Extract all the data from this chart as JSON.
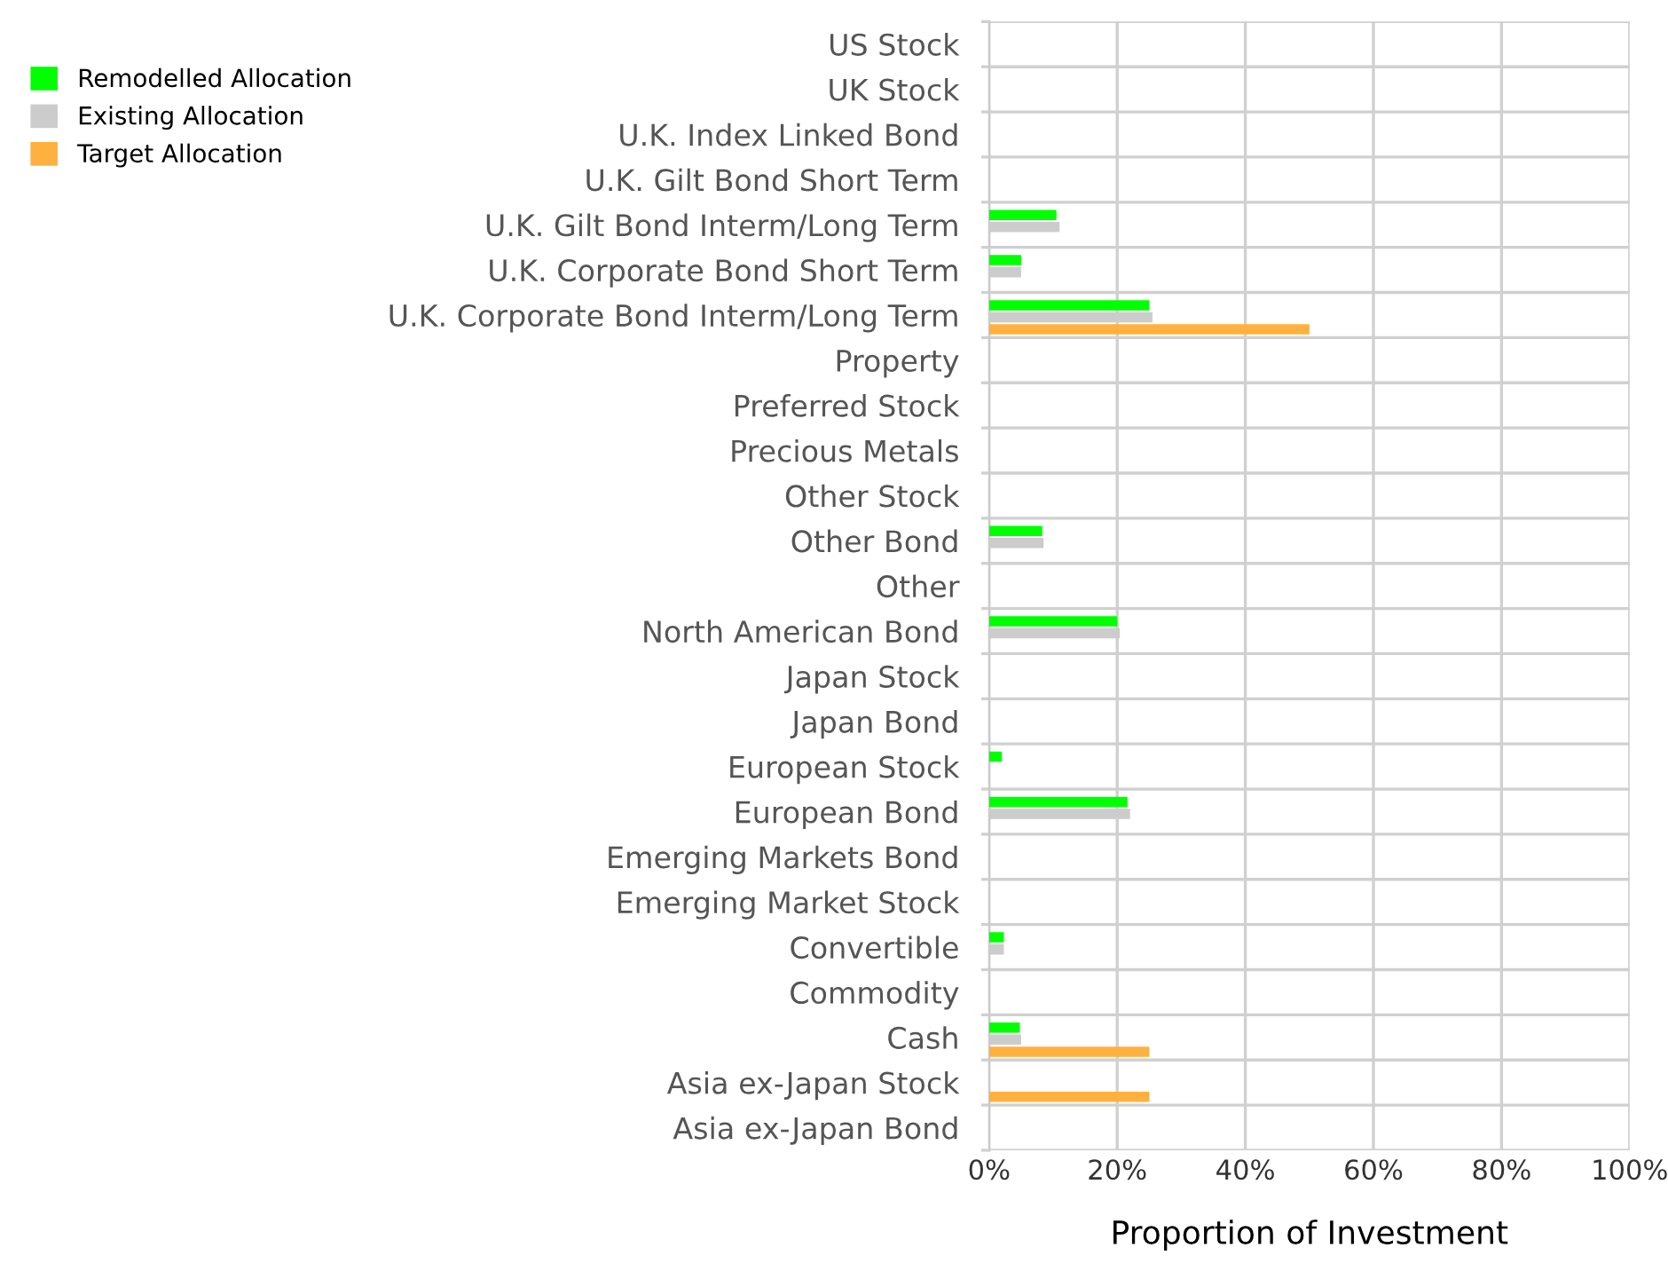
{
  "chart_data": {
    "type": "bar",
    "orientation": "horizontal",
    "xlabel": "Proportion of Investment",
    "categories": [
      "US Stock",
      "UK Stock",
      "U.K. Index Linked Bond",
      "U.K. Gilt Bond Short Term",
      "U.K. Gilt Bond Interm/Long Term",
      "U.K. Corporate Bond Short Term",
      "U.K. Corporate Bond Interm/Long Term",
      "Property",
      "Preferred Stock",
      "Precious Metals",
      "Other Stock",
      "Other Bond",
      "Other",
      "North American Bond",
      "Japan Stock",
      "Japan Bond",
      "European Stock",
      "European Bond",
      "Emerging Markets Bond",
      "Emerging Market Stock",
      "Convertible",
      "Commodity",
      "Cash",
      "Asia ex-Japan Stock",
      "Asia ex-Japan Bond"
    ],
    "series": [
      {
        "name": "Remodelled Allocation",
        "color": "#00ff00",
        "values": [
          0,
          0,
          0,
          0,
          10.5,
          5,
          25,
          0,
          0,
          0,
          0,
          8.3,
          0,
          20,
          0,
          0,
          2,
          21.6,
          0,
          0,
          2.3,
          0,
          4.8,
          0,
          0
        ]
      },
      {
        "name": "Existing Allocation",
        "color": "#cccccc",
        "values": [
          0,
          0,
          0,
          0,
          11,
          5,
          25.5,
          0,
          0,
          0,
          0,
          8.5,
          0,
          20.4,
          0,
          0,
          0,
          22,
          0,
          0,
          2.3,
          0,
          5,
          0,
          0
        ]
      },
      {
        "name": "Target Allocation",
        "color": "#ffb13f",
        "values": [
          0,
          0,
          0,
          0,
          0,
          0,
          50,
          0,
          0,
          0,
          0,
          0,
          0,
          0,
          0,
          0,
          0,
          0,
          0,
          0,
          0,
          0,
          25,
          25,
          0
        ]
      }
    ],
    "xlim": [
      0,
      100
    ],
    "xticks": [
      {
        "value": 0,
        "label": "0%"
      },
      {
        "value": 20,
        "label": "20%"
      },
      {
        "value": 40,
        "label": "40%"
      },
      {
        "value": 60,
        "label": "60%"
      },
      {
        "value": 80,
        "label": "80%"
      },
      {
        "value": 100,
        "label": "100%"
      }
    ],
    "grid": true,
    "legend": "top left"
  }
}
